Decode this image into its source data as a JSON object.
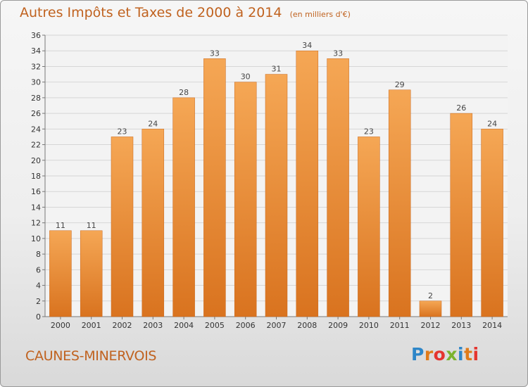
{
  "header": {
    "title": "Autres Impôts et Taxes de 2000 à 2014",
    "unit": "(en milliers d'€)"
  },
  "footer": {
    "commune": "CAUNES-MINERVOIS",
    "logo_text": "Proxiti"
  },
  "colors": {
    "bar_light": "#f5a755",
    "bar_dark": "#d9731f",
    "title": "#c0621f"
  },
  "chart_data": {
    "type": "bar",
    "title": "Autres Impôts et Taxes de 2000 à 2014",
    "subtitle": "(en milliers d'€)",
    "categories": [
      "2000",
      "2001",
      "2002",
      "2003",
      "2004",
      "2005",
      "2006",
      "2007",
      "2008",
      "2009",
      "2010",
      "2011",
      "2012",
      "2013",
      "2014"
    ],
    "values": [
      11,
      11,
      23,
      24,
      28,
      33,
      30,
      31,
      34,
      33,
      23,
      29,
      2,
      26,
      24
    ],
    "ylim": [
      0,
      36
    ],
    "yticks": [
      0,
      2,
      4,
      6,
      8,
      10,
      12,
      14,
      16,
      18,
      20,
      22,
      24,
      26,
      28,
      30,
      32,
      34,
      36
    ],
    "grid": true,
    "xlabel": "",
    "ylabel": ""
  }
}
